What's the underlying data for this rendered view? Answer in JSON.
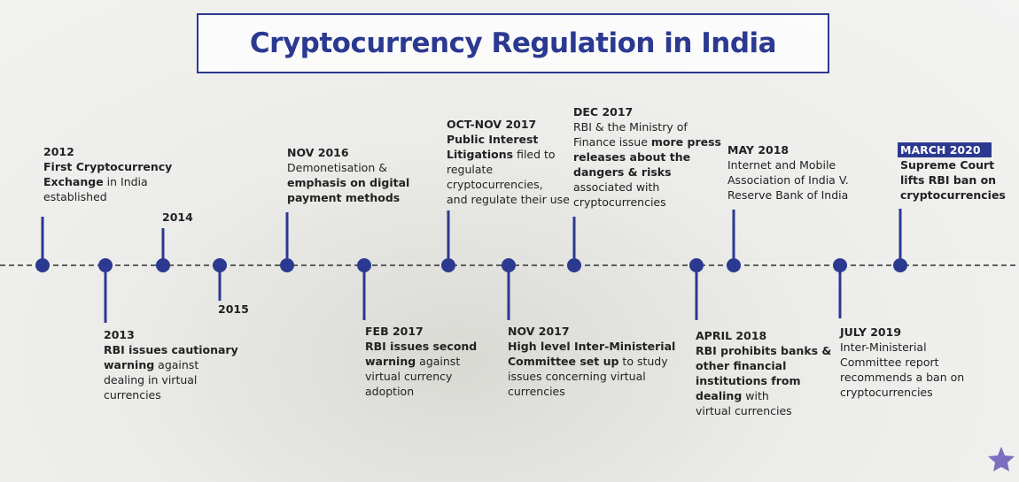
{
  "title": "Cryptocurrency Regulation in India",
  "events": [
    {
      "date": "2012",
      "lines": [
        [
          {
            "text": "First Cryptocurrency",
            "bold": true
          }
        ],
        [
          {
            "text": "Exchange",
            "bold": true
          },
          {
            "text": " in India",
            "bold": false
          }
        ],
        [
          {
            "text": "established",
            "bold": false
          }
        ]
      ]
    },
    {
      "date": "2013",
      "lines": [
        [
          {
            "text": "RBI issues cautionary",
            "bold": true
          }
        ],
        [
          {
            "text": "warning",
            "bold": true
          },
          {
            "text": " against",
            "bold": false
          }
        ],
        [
          {
            "text": "dealing in virtual",
            "bold": false
          }
        ],
        [
          {
            "text": "currencies",
            "bold": false
          }
        ]
      ]
    },
    {
      "date": "2014",
      "lines": []
    },
    {
      "date": "2015",
      "lines": []
    },
    {
      "date": "NOV 2016",
      "lines": [
        [
          {
            "text": "Demonetisation &",
            "bold": false
          }
        ],
        [
          {
            "text": "emphasis on digital",
            "bold": true
          }
        ],
        [
          {
            "text": "payment methods",
            "bold": true
          }
        ]
      ]
    },
    {
      "date": "FEB 2017",
      "lines": [
        [
          {
            "text": "RBI issues second",
            "bold": true
          }
        ],
        [
          {
            "text": "warning",
            "bold": true
          },
          {
            "text": " against",
            "bold": false
          }
        ],
        [
          {
            "text": "virtual currency",
            "bold": false
          }
        ],
        [
          {
            "text": "adoption",
            "bold": false
          }
        ]
      ]
    },
    {
      "date": "OCT-NOV 2017",
      "lines": [
        [
          {
            "text": "Public Interest",
            "bold": true
          }
        ],
        [
          {
            "text": "Litigations",
            "bold": true
          },
          {
            "text": " filed to",
            "bold": false
          }
        ],
        [
          {
            "text": "regulate",
            "bold": false
          }
        ],
        [
          {
            "text": "cryptocurrencies,",
            "bold": false
          }
        ],
        [
          {
            "text": "and regulate their use",
            "bold": false
          }
        ]
      ]
    },
    {
      "date": "NOV 2017",
      "lines": [
        [
          {
            "text": "High level Inter-Ministerial",
            "bold": true
          }
        ],
        [
          {
            "text": "Committee set up",
            "bold": true
          },
          {
            "text": " to study",
            "bold": false
          }
        ],
        [
          {
            "text": "issues concerning virtual",
            "bold": false
          }
        ],
        [
          {
            "text": "currencies",
            "bold": false
          }
        ]
      ]
    },
    {
      "date": "DEC 2017",
      "lines": [
        [
          {
            "text": "RBI & the Ministry of",
            "bold": false
          }
        ],
        [
          {
            "text": "Finance issue ",
            "bold": false
          },
          {
            "text": "more press",
            "bold": true
          }
        ],
        [
          {
            "text": "releases about the",
            "bold": true
          }
        ],
        [
          {
            "text": "dangers & risks",
            "bold": true
          }
        ],
        [
          {
            "text": "associated with",
            "bold": false
          }
        ],
        [
          {
            "text": "cryptocurrencies",
            "bold": false
          }
        ]
      ]
    },
    {
      "date": "APRIL 2018",
      "lines": [
        [
          {
            "text": "RBI prohibits banks &",
            "bold": true
          }
        ],
        [
          {
            "text": "other financial",
            "bold": true
          }
        ],
        [
          {
            "text": "institutions from",
            "bold": true
          }
        ],
        [
          {
            "text": "dealing",
            "bold": true
          },
          {
            "text": " with",
            "bold": false
          }
        ],
        [
          {
            "text": "virtual currencies",
            "bold": false
          }
        ]
      ]
    },
    {
      "date": "MAY 2018",
      "lines": [
        [
          {
            "text": "Internet and Mobile",
            "bold": false
          }
        ],
        [
          {
            "text": "Association of India V.",
            "bold": false
          }
        ],
        [
          {
            "text": "Reserve Bank of India",
            "bold": false
          }
        ]
      ]
    },
    {
      "date": "JULY 2019",
      "lines": [
        [
          {
            "text": "Inter-Ministerial",
            "bold": false
          }
        ],
        [
          {
            "text": "Committee report",
            "bold": false
          }
        ],
        [
          {
            "text": "recommends a ban on",
            "bold": false
          }
        ],
        [
          {
            "text": "cryptocurrencies",
            "bold": false
          }
        ]
      ]
    },
    {
      "date": "MARCH 2020",
      "highlight": true,
      "lines": [
        [
          {
            "text": "Supreme Court",
            "bold": true
          }
        ],
        [
          {
            "text": "lifts RBI ban on",
            "bold": true
          }
        ],
        [
          {
            "text": "cryptocurrencies",
            "bold": true
          }
        ]
      ]
    }
  ]
}
